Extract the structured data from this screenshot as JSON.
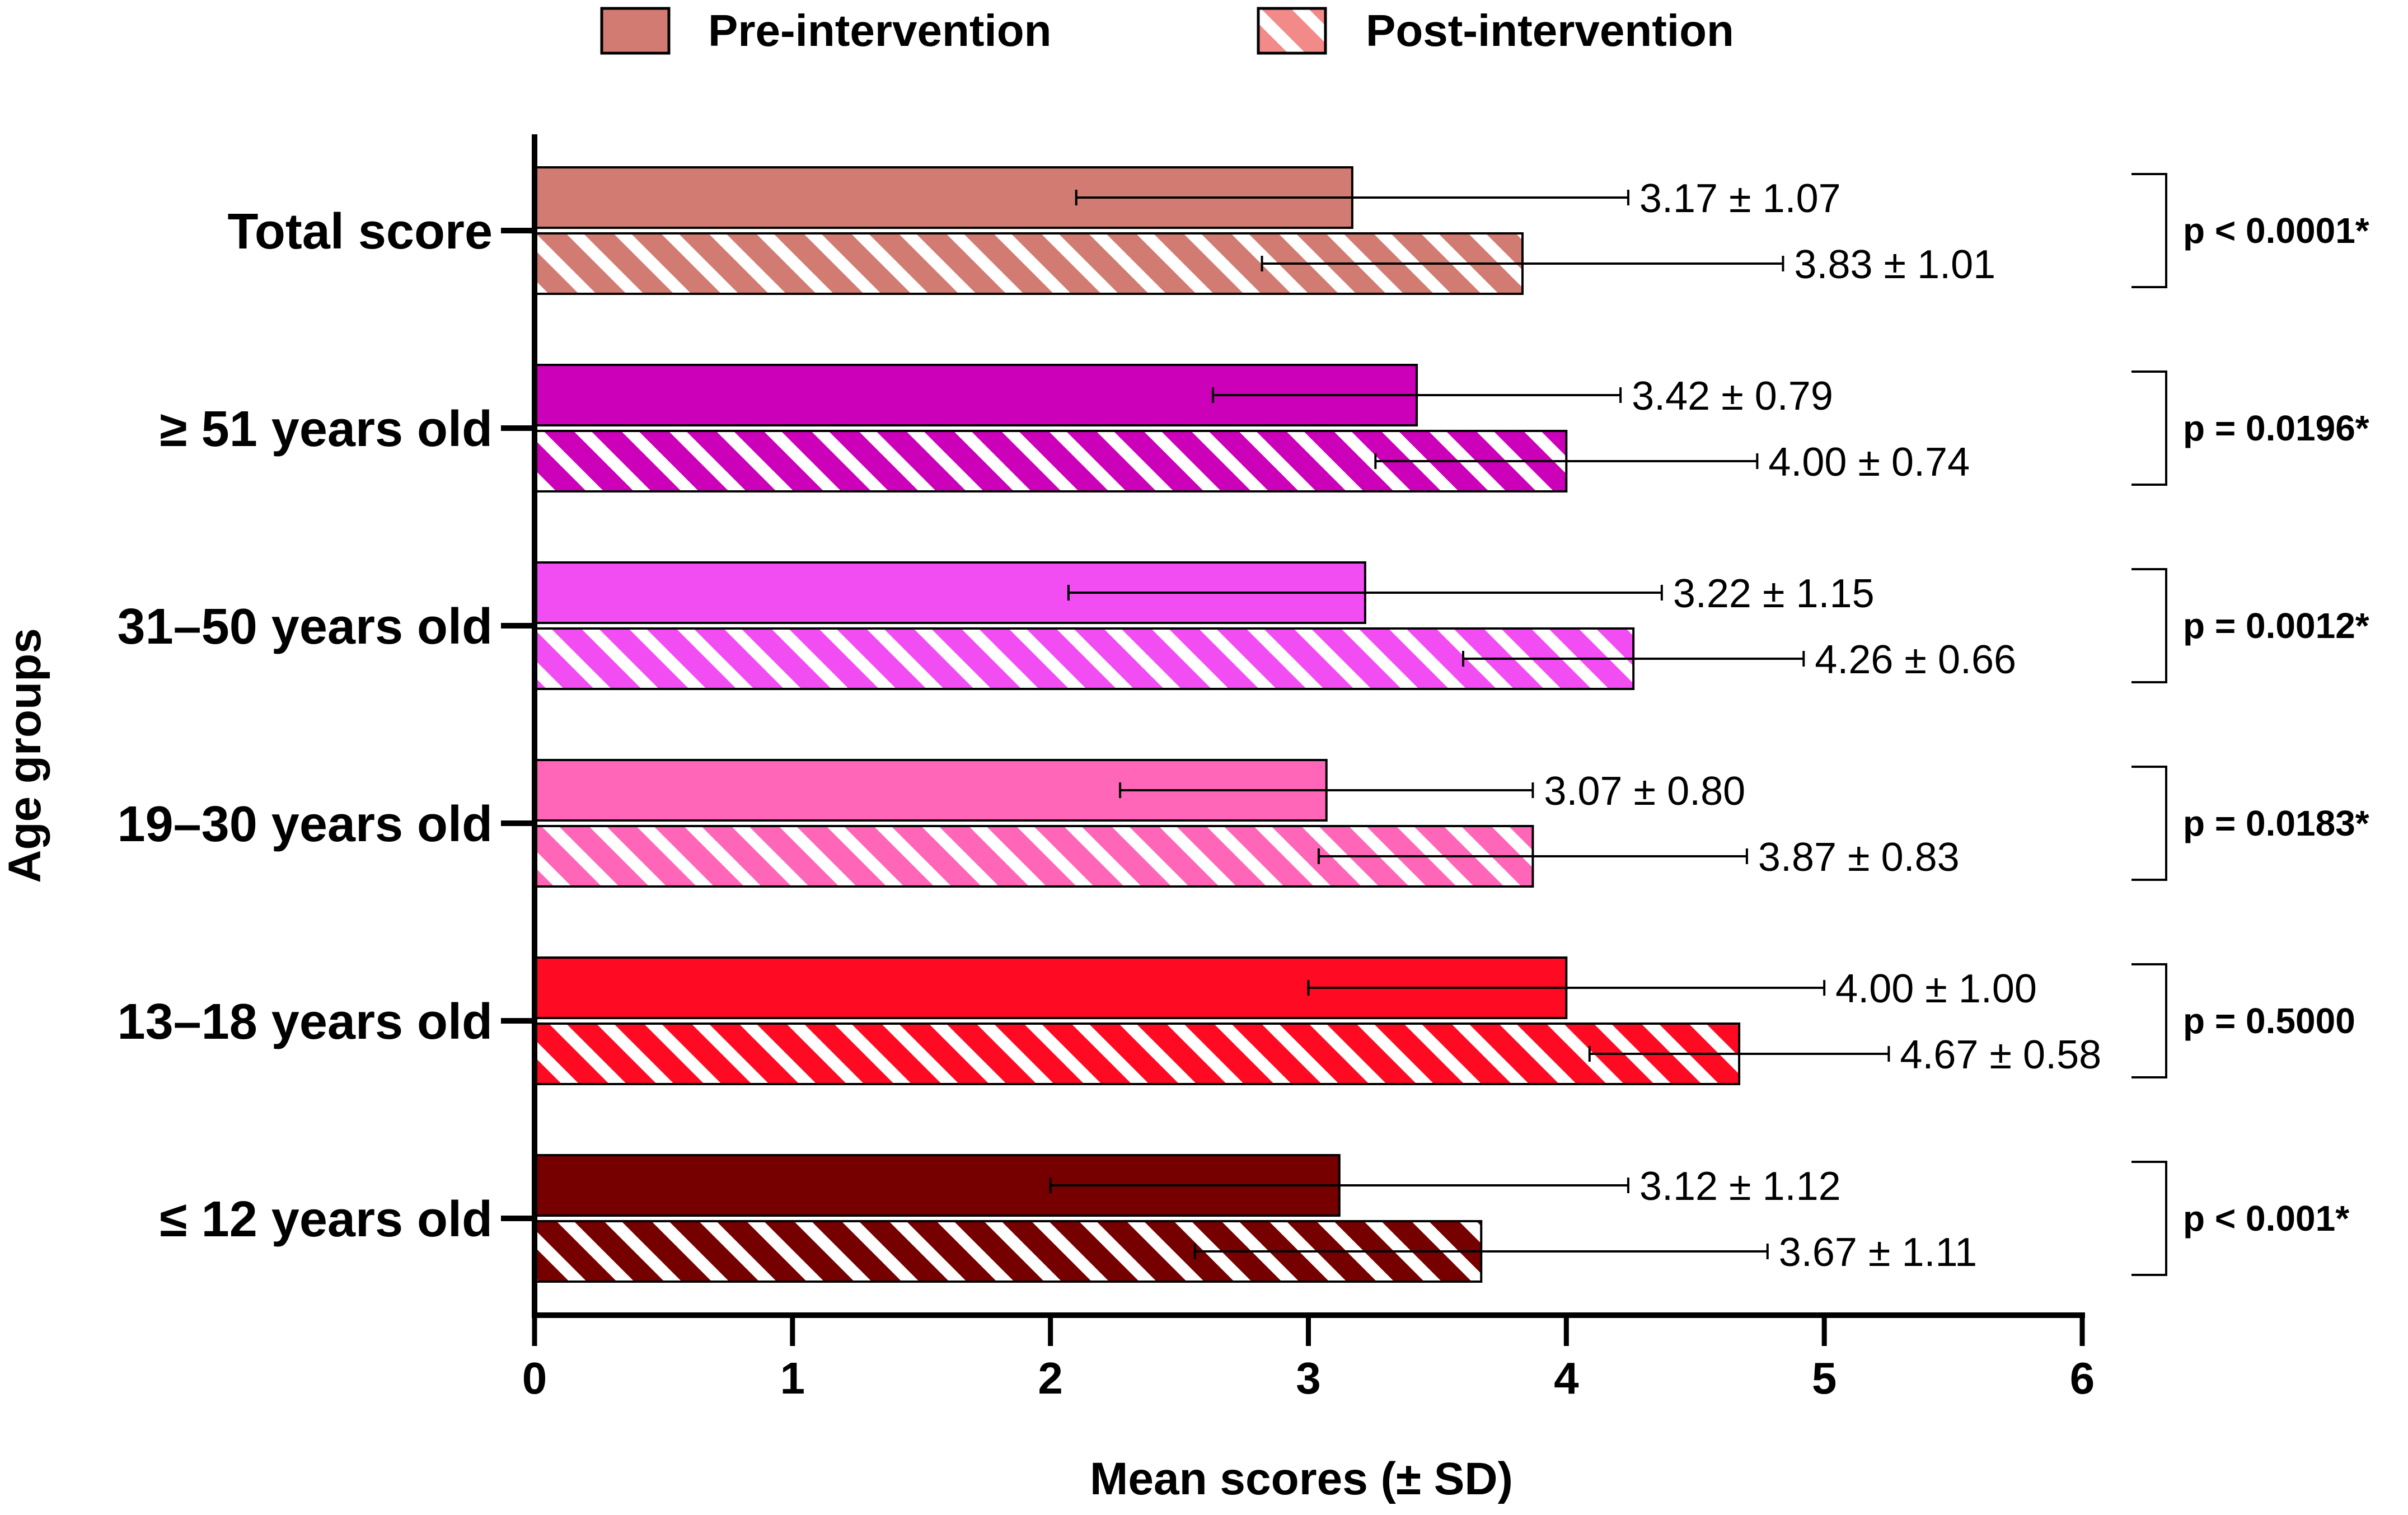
{
  "chart_data": {
    "type": "bar",
    "orientation": "horizontal",
    "xlabel": "Mean scores (± SD)",
    "ylabel": "Age groups",
    "xlim": [
      0,
      6
    ],
    "xticks": [
      "0",
      "1",
      "2",
      "3",
      "4",
      "5",
      "6"
    ],
    "grid": false,
    "legend_position": "top-center",
    "series_names": [
      "Pre-intervention",
      "Post-intervention"
    ],
    "categories": [
      {
        "label": "Total score",
        "color": "#D27B72",
        "pre": {
          "mean": 3.17,
          "sd": 1.07,
          "text": "3.17 ± 1.07"
        },
        "post": {
          "mean": 3.83,
          "sd": 1.01,
          "text": "3.83 ± 1.01"
        },
        "p_value": "p < 0.0001*"
      },
      {
        "label": "≥ 51 years old",
        "color": "#CC00B8",
        "pre": {
          "mean": 3.42,
          "sd": 0.79,
          "text": "3.42 ± 0.79"
        },
        "post": {
          "mean": 4.0,
          "sd": 0.74,
          "text": "4.00 ± 0.74"
        },
        "p_value": "p = 0.0196*"
      },
      {
        "label": "31–50 years old",
        "color": "#F24DF2",
        "pre": {
          "mean": 3.22,
          "sd": 1.15,
          "text": "3.22 ± 1.15"
        },
        "post": {
          "mean": 4.26,
          "sd": 0.66,
          "text": "4.26 ± 0.66"
        },
        "p_value": "p = 0.0012*"
      },
      {
        "label": "19–30 years old",
        "color": "#FF66B8",
        "pre": {
          "mean": 3.07,
          "sd": 0.8,
          "text": "3.07 ± 0.80"
        },
        "post": {
          "mean": 3.87,
          "sd": 0.83,
          "text": "3.87 ± 0.83"
        },
        "p_value": "p = 0.0183*"
      },
      {
        "label": "13–18 years old",
        "color": "#FF0A22",
        "pre": {
          "mean": 4.0,
          "sd": 1.0,
          "text": "4.00 ± 1.00"
        },
        "post": {
          "mean": 4.67,
          "sd": 0.58,
          "text": "4.67 ± 0.58"
        },
        "p_value": "p = 0.5000"
      },
      {
        "label": "≤ 12 years old",
        "color": "#760000",
        "pre": {
          "mean": 3.12,
          "sd": 1.12,
          "text": "3.12 ± 1.12"
        },
        "post": {
          "mean": 3.67,
          "sd": 1.11,
          "text": "3.67 ± 1.11"
        },
        "p_value": "p < 0.001*"
      }
    ]
  },
  "legend_colors": {
    "pre": "#D27B72",
    "post": "#F28A8A"
  }
}
